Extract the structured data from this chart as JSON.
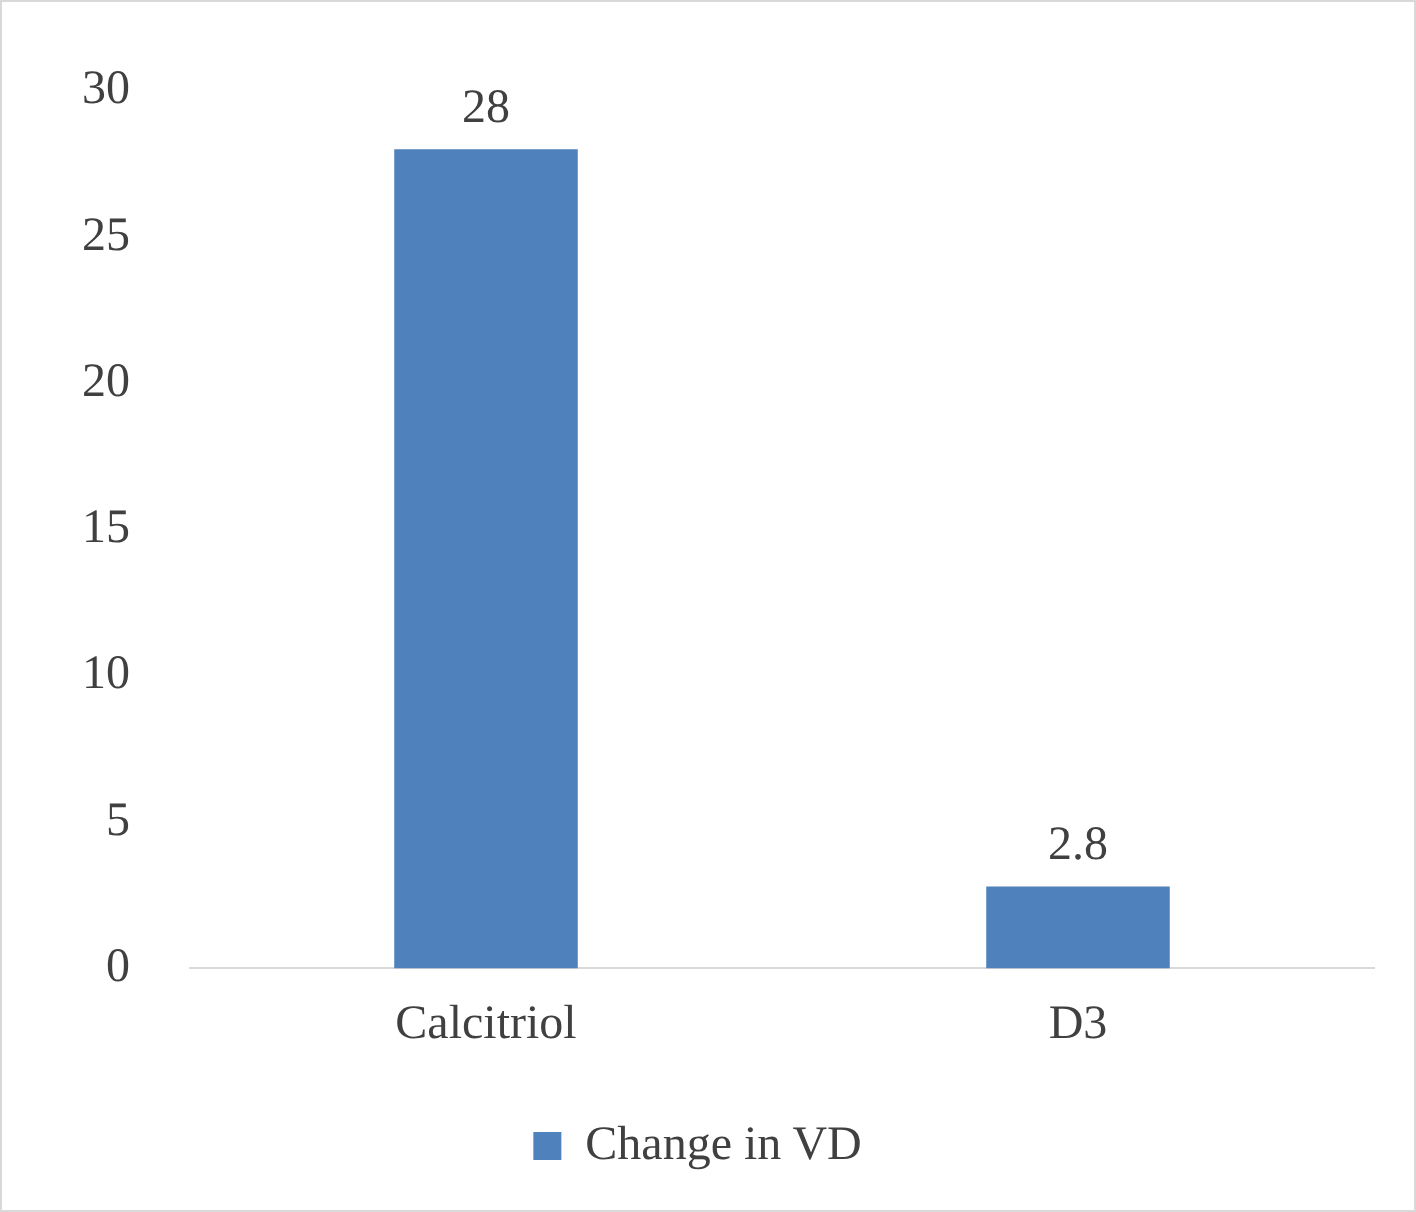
{
  "chart_data": {
    "type": "bar",
    "categories": [
      "Calcitriol",
      "D3"
    ],
    "series": [
      {
        "name": "Change in VD",
        "color": "#4f81bd",
        "values": [
          28,
          2.8
        ]
      }
    ],
    "ylim": [
      0,
      30
    ],
    "yticks": [
      0,
      5,
      10,
      15,
      20,
      25,
      30
    ],
    "grid": false,
    "legend": "bottom",
    "data_labels": true
  }
}
